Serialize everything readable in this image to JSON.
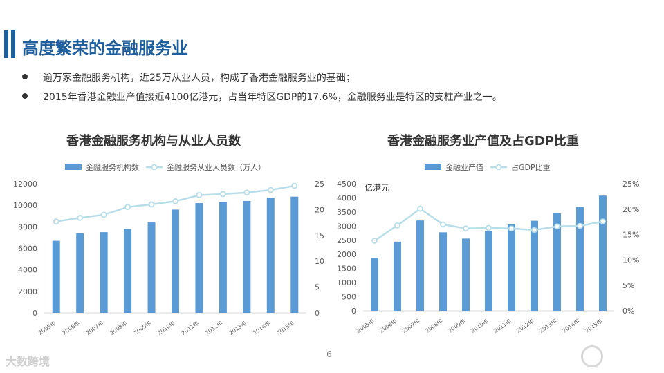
{
  "page": {
    "title": "高度繁荣的金融服务业",
    "bullets": [
      "逾万家金融服务机构，近25万从业人员，构成了香港金融服务业的基础；",
      "2015年香港金融业产值接近4100亿港元，占当年特区GDP的17.6%，金融服务业是特区的支柱产业之一。"
    ],
    "page_number": "6",
    "footer_logo_left": "大数跨境"
  },
  "chart_data": [
    {
      "type": "bar",
      "title": "香港金融服务机构与从业人员数",
      "categories": [
        "2005年",
        "2006年",
        "2007年",
        "2008年",
        "2009年",
        "2010年",
        "2011年",
        "2012年",
        "2013年",
        "2014年",
        "2015年"
      ],
      "series": [
        {
          "name": "金融服务机构数",
          "type": "bar",
          "axis": "left",
          "color": "#5b9bd5",
          "values": [
            6700,
            7400,
            7500,
            7800,
            8400,
            9600,
            10200,
            10300,
            10400,
            10700,
            10800
          ]
        },
        {
          "name": "金融服务从业人员数（万人）",
          "type": "line",
          "axis": "right",
          "color": "#b7dde8",
          "values": [
            17.7,
            18.4,
            19.0,
            20.5,
            21.0,
            21.6,
            22.8,
            23.0,
            23.3,
            23.8,
            24.6
          ]
        }
      ],
      "y_left": {
        "min": 0,
        "max": 12000,
        "ticks": [
          0,
          2000,
          4000,
          6000,
          8000,
          10000,
          12000
        ]
      },
      "y_right": {
        "min": 0,
        "max": 25,
        "ticks": [
          0,
          5,
          10,
          15,
          20,
          25
        ]
      },
      "legend": "top",
      "grid": false
    },
    {
      "type": "bar",
      "title": "香港金融服务业产值及占GDP比重",
      "categories": [
        "2005年",
        "2006年",
        "2007年",
        "2008年",
        "2009年",
        "2010年",
        "2011年",
        "2012年",
        "2013年",
        "2014年",
        "2015年"
      ],
      "series": [
        {
          "name": "金融业产值",
          "type": "bar",
          "axis": "left",
          "color": "#5b9bd5",
          "values": [
            1880,
            2450,
            3200,
            2780,
            2560,
            2830,
            3060,
            3190,
            3450,
            3680,
            4080
          ]
        },
        {
          "name": "占GDP比重",
          "type": "line",
          "axis": "right",
          "color": "#b7dde8",
          "values": [
            13.8,
            16.8,
            20.1,
            17.0,
            16.2,
            16.3,
            16.2,
            15.9,
            16.6,
            16.7,
            17.6
          ]
        }
      ],
      "y_left": {
        "min": 0,
        "max": 4500,
        "ticks": [
          0,
          500,
          1000,
          1500,
          2000,
          2500,
          3000,
          3500,
          4000,
          4500
        ],
        "unit": "亿港元"
      },
      "y_right": {
        "min": 0,
        "max": 25,
        "ticks": [
          0,
          5,
          10,
          15,
          20,
          25
        ],
        "suffix": "%"
      },
      "legend": "top",
      "grid": false
    }
  ]
}
